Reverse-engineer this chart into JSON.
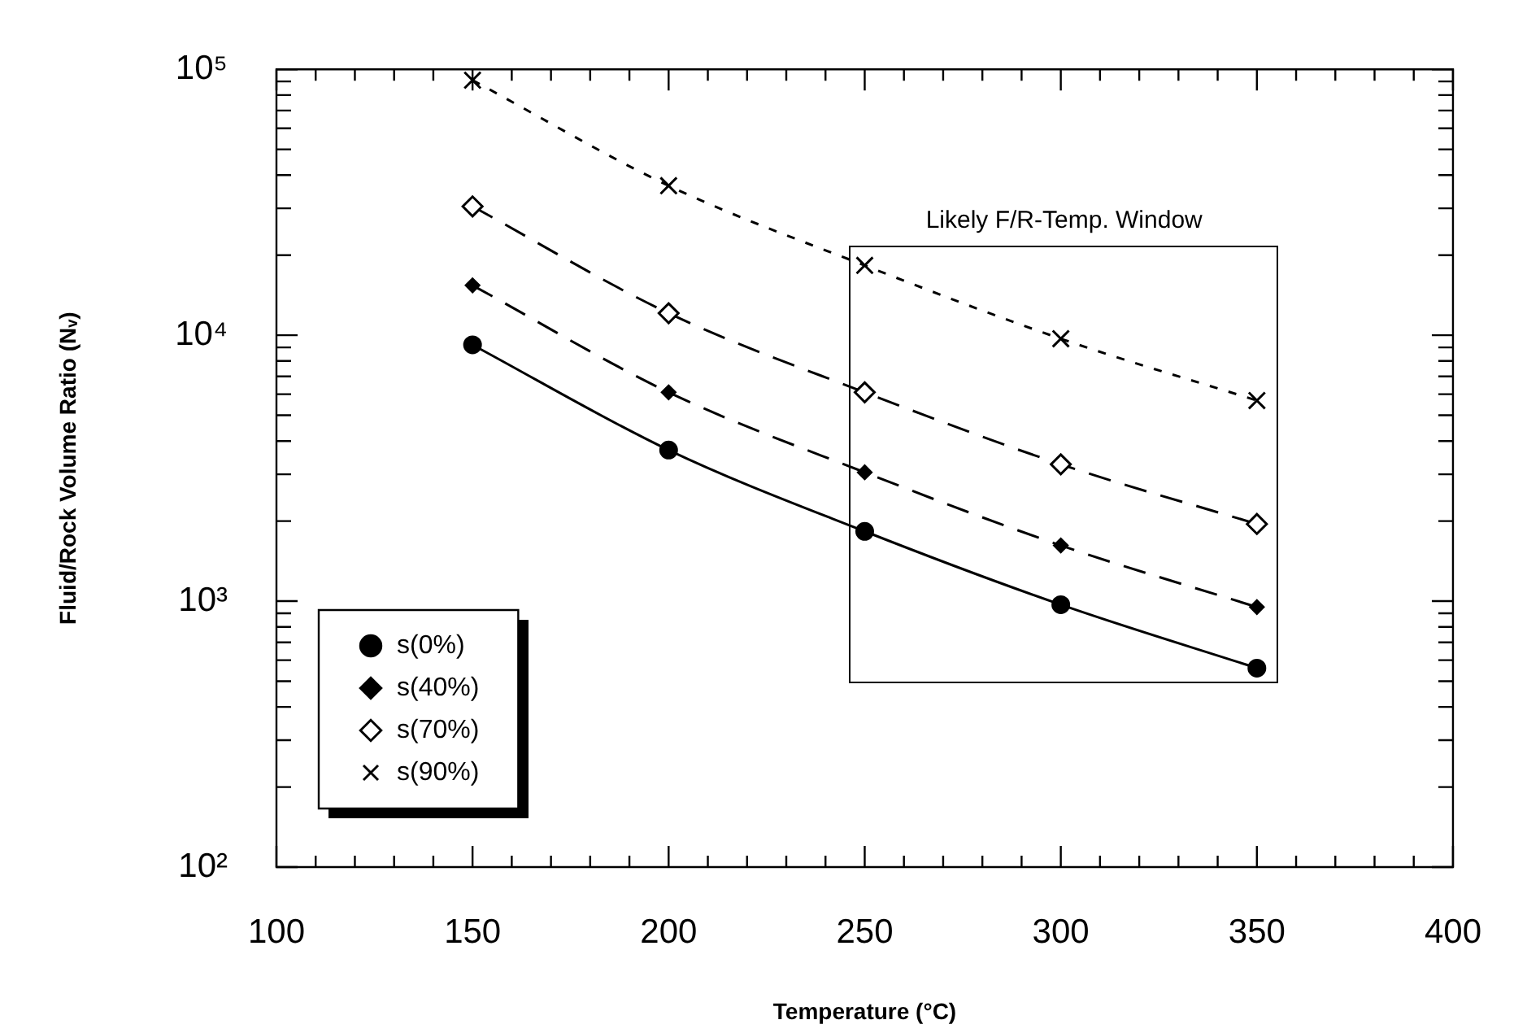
{
  "chart_data": {
    "type": "line",
    "xlabel": "Temperature (°C)",
    "ylabel": "Fluid/Rock Volume Ratio (Nᵥ)",
    "log": "y",
    "grid": false,
    "legend": "bottom left",
    "xlim": [
      100,
      400
    ],
    "xticks": [
      100,
      {
        "value": 110,
        "label": null
      },
      {
        "value": 120,
        "label": null
      },
      {
        "value": 130,
        "label": null
      },
      {
        "value": 140,
        "label": null
      },
      150,
      {
        "value": 160,
        "label": null
      },
      {
        "value": 170,
        "label": null
      },
      {
        "value": 180,
        "label": null
      },
      {
        "value": 190,
        "label": null
      },
      200,
      {
        "value": 210,
        "label": null
      },
      {
        "value": 220,
        "label": null
      },
      {
        "value": 230,
        "label": null
      },
      {
        "value": 240,
        "label": null
      },
      250,
      {
        "value": 260,
        "label": null
      },
      {
        "value": 270,
        "label": null
      },
      {
        "value": 280,
        "label": null
      },
      {
        "value": 290,
        "label": null
      },
      300,
      {
        "value": 310,
        "label": null
      },
      {
        "value": 320,
        "label": null
      },
      {
        "value": 330,
        "label": null
      },
      {
        "value": 340,
        "label": null
      },
      350,
      {
        "value": 360,
        "label": null
      },
      {
        "value": 370,
        "label": null
      },
      {
        "value": 380,
        "label": null
      },
      {
        "value": 390,
        "label": null
      },
      400
    ],
    "ylim": [
      100,
      100000
    ],
    "yticks": [
      {
        "value": 100,
        "label": "10²"
      },
      {
        "value": 200,
        "label": null
      },
      {
        "value": 300,
        "label": null
      },
      {
        "value": 400,
        "label": null
      },
      {
        "value": 500,
        "label": null
      },
      {
        "value": 600,
        "label": null
      },
      {
        "value": 700,
        "label": null
      },
      {
        "value": 800,
        "label": null
      },
      {
        "value": 900,
        "label": null
      },
      {
        "value": 1000,
        "label": "10³"
      },
      {
        "value": 2000,
        "label": null
      },
      {
        "value": 3000,
        "label": null
      },
      {
        "value": 4000,
        "label": null
      },
      {
        "value": 5000,
        "label": null
      },
      {
        "value": 6000,
        "label": null
      },
      {
        "value": 7000,
        "label": null
      },
      {
        "value": 8000,
        "label": null
      },
      {
        "value": 9000,
        "label": null
      },
      {
        "value": 10000,
        "label": "10⁴"
      },
      {
        "value": 20000,
        "label": null
      },
      {
        "value": 30000,
        "label": null
      },
      {
        "value": 40000,
        "label": null
      },
      {
        "value": 50000,
        "label": null
      },
      {
        "value": 60000,
        "label": null
      },
      {
        "value": 70000,
        "label": null
      },
      {
        "value": 80000,
        "label": null
      },
      {
        "value": 90000,
        "label": null
      },
      {
        "value": 100000,
        "label": "10⁵"
      }
    ],
    "x": [
      150,
      200,
      250,
      300,
      350
    ],
    "series": [
      {
        "name": "s(0%)",
        "color": "#000000",
        "marker": "circle",
        "line_style": "solid",
        "values": [
          9200,
          3700,
          1830,
          970,
          560
        ]
      },
      {
        "name": "s(40%)",
        "color": "#000000",
        "marker": "diamond",
        "line_style": "dashed",
        "values": [
          15400,
          6100,
          3050,
          1620,
          950
        ]
      },
      {
        "name": "s(70%)",
        "color": "#000000",
        "marker": "diamond",
        "line_style": "dashed",
        "values": [
          30500,
          12100,
          6100,
          3270,
          1950
        ]
      },
      {
        "name": "s(90%)",
        "color": "#000000",
        "marker": "cross",
        "line_style": "dotted",
        "values": [
          91000,
          36500,
          18300,
          9700,
          5680
        ]
      }
    ],
    "annotations": [
      "Likely F/R-Temp. Window"
    ]
  }
}
